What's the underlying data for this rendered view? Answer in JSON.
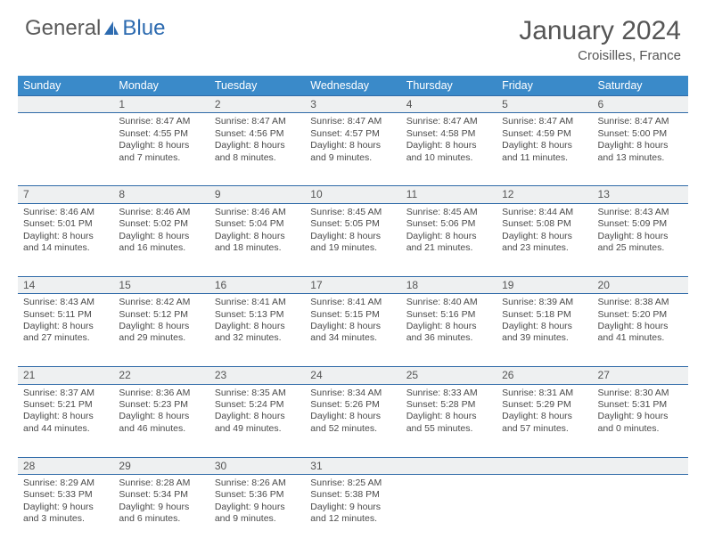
{
  "logo": {
    "part1": "General",
    "part2": "Blue"
  },
  "title": {
    "month": "January 2024",
    "location": "Croisilles, France"
  },
  "weekdays": [
    "Sunday",
    "Monday",
    "Tuesday",
    "Wednesday",
    "Thursday",
    "Friday",
    "Saturday"
  ],
  "colors": {
    "header_bg": "#3a8ac9",
    "header_text": "#ffffff",
    "rule": "#2f6aa8",
    "daynum_bg": "#eef0f1",
    "text": "#4a4a4a",
    "title_text": "#555555",
    "logo_gray": "#5a5a5a",
    "logo_blue": "#2d6bb0"
  },
  "typography": {
    "month_size_pt": 30,
    "location_size_pt": 15,
    "weekday_size_pt": 12.5,
    "daynum_size_pt": 12,
    "body_size_pt": 10.5
  },
  "weeks": [
    [
      null,
      {
        "n": "1",
        "sunrise": "Sunrise: 8:47 AM",
        "sunset": "Sunset: 4:55 PM",
        "daylight": "Daylight: 8 hours and 7 minutes."
      },
      {
        "n": "2",
        "sunrise": "Sunrise: 8:47 AM",
        "sunset": "Sunset: 4:56 PM",
        "daylight": "Daylight: 8 hours and 8 minutes."
      },
      {
        "n": "3",
        "sunrise": "Sunrise: 8:47 AM",
        "sunset": "Sunset: 4:57 PM",
        "daylight": "Daylight: 8 hours and 9 minutes."
      },
      {
        "n": "4",
        "sunrise": "Sunrise: 8:47 AM",
        "sunset": "Sunset: 4:58 PM",
        "daylight": "Daylight: 8 hours and 10 minutes."
      },
      {
        "n": "5",
        "sunrise": "Sunrise: 8:47 AM",
        "sunset": "Sunset: 4:59 PM",
        "daylight": "Daylight: 8 hours and 11 minutes."
      },
      {
        "n": "6",
        "sunrise": "Sunrise: 8:47 AM",
        "sunset": "Sunset: 5:00 PM",
        "daylight": "Daylight: 8 hours and 13 minutes."
      }
    ],
    [
      {
        "n": "7",
        "sunrise": "Sunrise: 8:46 AM",
        "sunset": "Sunset: 5:01 PM",
        "daylight": "Daylight: 8 hours and 14 minutes."
      },
      {
        "n": "8",
        "sunrise": "Sunrise: 8:46 AM",
        "sunset": "Sunset: 5:02 PM",
        "daylight": "Daylight: 8 hours and 16 minutes."
      },
      {
        "n": "9",
        "sunrise": "Sunrise: 8:46 AM",
        "sunset": "Sunset: 5:04 PM",
        "daylight": "Daylight: 8 hours and 18 minutes."
      },
      {
        "n": "10",
        "sunrise": "Sunrise: 8:45 AM",
        "sunset": "Sunset: 5:05 PM",
        "daylight": "Daylight: 8 hours and 19 minutes."
      },
      {
        "n": "11",
        "sunrise": "Sunrise: 8:45 AM",
        "sunset": "Sunset: 5:06 PM",
        "daylight": "Daylight: 8 hours and 21 minutes."
      },
      {
        "n": "12",
        "sunrise": "Sunrise: 8:44 AM",
        "sunset": "Sunset: 5:08 PM",
        "daylight": "Daylight: 8 hours and 23 minutes."
      },
      {
        "n": "13",
        "sunrise": "Sunrise: 8:43 AM",
        "sunset": "Sunset: 5:09 PM",
        "daylight": "Daylight: 8 hours and 25 minutes."
      }
    ],
    [
      {
        "n": "14",
        "sunrise": "Sunrise: 8:43 AM",
        "sunset": "Sunset: 5:11 PM",
        "daylight": "Daylight: 8 hours and 27 minutes."
      },
      {
        "n": "15",
        "sunrise": "Sunrise: 8:42 AM",
        "sunset": "Sunset: 5:12 PM",
        "daylight": "Daylight: 8 hours and 29 minutes."
      },
      {
        "n": "16",
        "sunrise": "Sunrise: 8:41 AM",
        "sunset": "Sunset: 5:13 PM",
        "daylight": "Daylight: 8 hours and 32 minutes."
      },
      {
        "n": "17",
        "sunrise": "Sunrise: 8:41 AM",
        "sunset": "Sunset: 5:15 PM",
        "daylight": "Daylight: 8 hours and 34 minutes."
      },
      {
        "n": "18",
        "sunrise": "Sunrise: 8:40 AM",
        "sunset": "Sunset: 5:16 PM",
        "daylight": "Daylight: 8 hours and 36 minutes."
      },
      {
        "n": "19",
        "sunrise": "Sunrise: 8:39 AM",
        "sunset": "Sunset: 5:18 PM",
        "daylight": "Daylight: 8 hours and 39 minutes."
      },
      {
        "n": "20",
        "sunrise": "Sunrise: 8:38 AM",
        "sunset": "Sunset: 5:20 PM",
        "daylight": "Daylight: 8 hours and 41 minutes."
      }
    ],
    [
      {
        "n": "21",
        "sunrise": "Sunrise: 8:37 AM",
        "sunset": "Sunset: 5:21 PM",
        "daylight": "Daylight: 8 hours and 44 minutes."
      },
      {
        "n": "22",
        "sunrise": "Sunrise: 8:36 AM",
        "sunset": "Sunset: 5:23 PM",
        "daylight": "Daylight: 8 hours and 46 minutes."
      },
      {
        "n": "23",
        "sunrise": "Sunrise: 8:35 AM",
        "sunset": "Sunset: 5:24 PM",
        "daylight": "Daylight: 8 hours and 49 minutes."
      },
      {
        "n": "24",
        "sunrise": "Sunrise: 8:34 AM",
        "sunset": "Sunset: 5:26 PM",
        "daylight": "Daylight: 8 hours and 52 minutes."
      },
      {
        "n": "25",
        "sunrise": "Sunrise: 8:33 AM",
        "sunset": "Sunset: 5:28 PM",
        "daylight": "Daylight: 8 hours and 55 minutes."
      },
      {
        "n": "26",
        "sunrise": "Sunrise: 8:31 AM",
        "sunset": "Sunset: 5:29 PM",
        "daylight": "Daylight: 8 hours and 57 minutes."
      },
      {
        "n": "27",
        "sunrise": "Sunrise: 8:30 AM",
        "sunset": "Sunset: 5:31 PM",
        "daylight": "Daylight: 9 hours and 0 minutes."
      }
    ],
    [
      {
        "n": "28",
        "sunrise": "Sunrise: 8:29 AM",
        "sunset": "Sunset: 5:33 PM",
        "daylight": "Daylight: 9 hours and 3 minutes."
      },
      {
        "n": "29",
        "sunrise": "Sunrise: 8:28 AM",
        "sunset": "Sunset: 5:34 PM",
        "daylight": "Daylight: 9 hours and 6 minutes."
      },
      {
        "n": "30",
        "sunrise": "Sunrise: 8:26 AM",
        "sunset": "Sunset: 5:36 PM",
        "daylight": "Daylight: 9 hours and 9 minutes."
      },
      {
        "n": "31",
        "sunrise": "Sunrise: 8:25 AM",
        "sunset": "Sunset: 5:38 PM",
        "daylight": "Daylight: 9 hours and 12 minutes."
      },
      null,
      null,
      null
    ]
  ]
}
